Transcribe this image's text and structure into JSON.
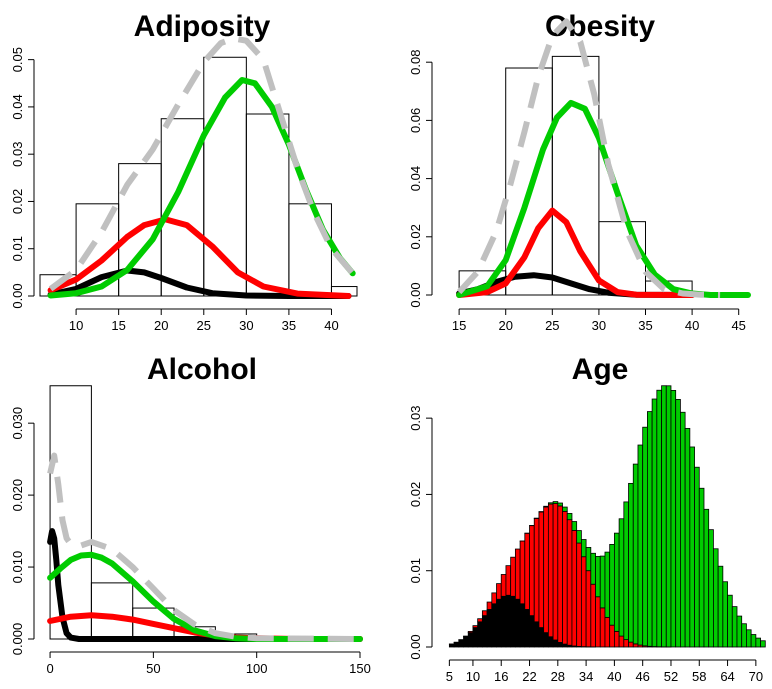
{
  "chart_data": [
    {
      "type": "histogram+density",
      "title": "Adiposity",
      "xlim": [
        6.7,
        43
      ],
      "ylim": [
        0,
        0.055
      ],
      "xticks": [
        10,
        15,
        20,
        25,
        30,
        35,
        40
      ],
      "yticks": [
        0.0,
        0.01,
        0.02,
        0.03,
        0.04,
        0.05
      ],
      "ytick_labels": [
        "0.00",
        "0.01",
        "0.02",
        "0.03",
        "0.04",
        "0.05"
      ],
      "hist": {
        "edges": [
          5,
          10,
          15,
          20,
          25,
          30,
          35,
          40,
          45
        ],
        "density": [
          0.0045,
          0.0195,
          0.028,
          0.0375,
          0.0505,
          0.0385,
          0.0195,
          0.002
        ]
      },
      "curves": [
        {
          "color": "#000000",
          "dash": false,
          "x": [
            7,
            10,
            13,
            16,
            18,
            20,
            23,
            26,
            30,
            35,
            42
          ],
          "y": [
            0.0003,
            0.0015,
            0.004,
            0.0054,
            0.005,
            0.0038,
            0.0018,
            0.0006,
            0.0001,
            0.0,
            0.0
          ]
        },
        {
          "color": "#ff0000",
          "dash": false,
          "x": [
            7,
            10,
            13,
            16,
            18,
            20.5,
            23,
            26,
            29,
            32,
            36,
            42
          ],
          "y": [
            0.0012,
            0.0035,
            0.0075,
            0.0125,
            0.015,
            0.0162,
            0.015,
            0.0105,
            0.005,
            0.002,
            0.0005,
            0.0
          ]
        },
        {
          "color": "#00cc00",
          "dash": false,
          "x": [
            7,
            10,
            13,
            16,
            19,
            22,
            25,
            27.5,
            29.5,
            31,
            33,
            35,
            37,
            39,
            41,
            42.5
          ],
          "y": [
            0.0001,
            0.0006,
            0.002,
            0.0055,
            0.012,
            0.022,
            0.034,
            0.042,
            0.0457,
            0.045,
            0.04,
            0.032,
            0.0225,
            0.014,
            0.008,
            0.0048
          ]
        },
        {
          "color": "#c0c0c0",
          "dash": true,
          "x": [
            7,
            10,
            13,
            16,
            19,
            22,
            25,
            27,
            28.5,
            30,
            32,
            34,
            36,
            38,
            40,
            42.5
          ],
          "y": [
            0.0015,
            0.0055,
            0.0135,
            0.0235,
            0.031,
            0.0405,
            0.0495,
            0.0535,
            0.0545,
            0.054,
            0.05,
            0.0385,
            0.027,
            0.0175,
            0.01,
            0.0048
          ]
        }
      ]
    },
    {
      "type": "histogram+density",
      "title": "Obesity",
      "xlim": [
        13.7,
        47.5
      ],
      "ylim": [
        0,
        0.089
      ],
      "xticks": [
        15,
        20,
        25,
        30,
        35,
        40,
        45
      ],
      "yticks": [
        0.0,
        0.02,
        0.04,
        0.06,
        0.08
      ],
      "ytick_labels": [
        "0.00",
        "0.02",
        "0.04",
        "0.06",
        "0.08"
      ],
      "hist": {
        "edges": [
          15,
          20,
          25,
          30,
          35,
          40,
          45
        ],
        "density": [
          0.0083,
          0.078,
          0.082,
          0.0252,
          0.0048,
          0.0006
        ]
      },
      "curves": [
        {
          "color": "#000000",
          "dash": false,
          "x": [
            15,
            17,
            19,
            21,
            23,
            25,
            27,
            29,
            31,
            34,
            40
          ],
          "y": [
            0.0005,
            0.002,
            0.0045,
            0.0063,
            0.0068,
            0.006,
            0.004,
            0.002,
            0.0008,
            0.0001,
            0.0
          ]
        },
        {
          "color": "#ff0000",
          "dash": false,
          "x": [
            15,
            18,
            20,
            22,
            23.5,
            25,
            26.5,
            28,
            30,
            32,
            34,
            40
          ],
          "y": [
            0.0,
            0.001,
            0.004,
            0.013,
            0.023,
            0.029,
            0.025,
            0.015,
            0.005,
            0.001,
            0.0001,
            0.0
          ]
        },
        {
          "color": "#00cc00",
          "dash": false,
          "x": [
            15,
            18,
            20,
            22,
            24,
            25.5,
            27,
            28.5,
            30,
            32,
            34,
            36,
            38,
            40,
            42,
            46
          ],
          "y": [
            0.0,
            0.003,
            0.012,
            0.03,
            0.05,
            0.061,
            0.066,
            0.064,
            0.054,
            0.035,
            0.017,
            0.007,
            0.002,
            0.0005,
            0.0,
            0.0
          ]
        },
        {
          "color": "#c0c0c0",
          "dash": true,
          "x": [
            15,
            17,
            19,
            20.5,
            22,
            23.5,
            25,
            26.5,
            28,
            29.5,
            31,
            33,
            35,
            37,
            39,
            41,
            43
          ],
          "y": [
            0.001,
            0.008,
            0.022,
            0.038,
            0.056,
            0.075,
            0.089,
            0.094,
            0.087,
            0.069,
            0.045,
            0.022,
            0.008,
            0.002,
            0.0005,
            0.0001,
            0.0
          ]
        }
      ]
    },
    {
      "type": "histogram+density",
      "title": "Alcohol",
      "xlim": [
        -1,
        150
      ],
      "ylim": [
        0,
        0.036
      ],
      "xticks": [
        0,
        50,
        100,
        150
      ],
      "yticks": [
        0.0,
        0.01,
        0.02,
        0.03
      ],
      "ytick_labels": [
        "0.000",
        "0.010",
        "0.020",
        "0.030"
      ],
      "hist": {
        "edges": [
          0,
          20,
          40,
          60,
          80,
          100,
          120,
          140,
          160
        ],
        "density": [
          0.0352,
          0.0078,
          0.0043,
          0.0017,
          0.0007,
          0.0001,
          5e-05,
          2e-05
        ]
      },
      "curves": [
        {
          "color": "#000000",
          "dash": false,
          "x": [
            0,
            1,
            2,
            3,
            4,
            6,
            8,
            10,
            14,
            20,
            150
          ],
          "y": [
            0.0135,
            0.015,
            0.014,
            0.011,
            0.0075,
            0.003,
            0.0008,
            0.0002,
            0.0,
            0.0,
            0.0
          ]
        },
        {
          "color": "#ff0000",
          "dash": false,
          "x": [
            0,
            10,
            20,
            30,
            40,
            50,
            60,
            70,
            80,
            90,
            100,
            120,
            150
          ],
          "y": [
            0.0025,
            0.0031,
            0.0033,
            0.0031,
            0.0027,
            0.0021,
            0.0015,
            0.0009,
            0.0005,
            0.0002,
            0.0001,
            0.0,
            0.0
          ]
        },
        {
          "color": "#00cc00",
          "dash": false,
          "x": [
            0,
            5,
            10,
            15,
            20,
            25,
            30,
            40,
            50,
            60,
            70,
            80,
            90,
            100,
            150
          ],
          "y": [
            0.0085,
            0.0098,
            0.011,
            0.0116,
            0.0117,
            0.0113,
            0.0105,
            0.008,
            0.0052,
            0.0028,
            0.0012,
            0.0004,
            0.0001,
            0.0,
            0.0
          ]
        },
        {
          "color": "#c0c0c0",
          "dash": true,
          "x": [
            0,
            2,
            4,
            6,
            8,
            10,
            15,
            20,
            30,
            40,
            50,
            60,
            70,
            80,
            90,
            100,
            150
          ],
          "y": [
            0.023,
            0.0255,
            0.0215,
            0.0165,
            0.014,
            0.0132,
            0.013,
            0.0135,
            0.0125,
            0.01,
            0.007,
            0.004,
            0.002,
            0.0008,
            0.0003,
            0.0001,
            0.0
          ]
        }
      ]
    },
    {
      "type": "stacked-bar",
      "title": "Age",
      "xlim": [
        4.5,
        73
      ],
      "ylim": [
        0,
        0.035
      ],
      "xticks": [
        5,
        10,
        16,
        22,
        28,
        34,
        40,
        46,
        52,
        58,
        64,
        70
      ],
      "yticks": [
        0.0,
        0.01,
        0.02,
        0.03
      ],
      "ytick_labels": [
        "0.00",
        "0.01",
        "0.02",
        "0.03"
      ],
      "bins": {
        "start": 5,
        "end": 72,
        "width": 1
      },
      "components": [
        {
          "color": "#000000",
          "mean": 17.5,
          "sd": 5,
          "weight": 0.085
        },
        {
          "color": "#ff0000",
          "mean": 28,
          "sd": 6,
          "weight": 0.27
        },
        {
          "color": "#00cc00",
          "mean": 51,
          "sd": 7.5,
          "weight": 0.645
        }
      ]
    }
  ]
}
